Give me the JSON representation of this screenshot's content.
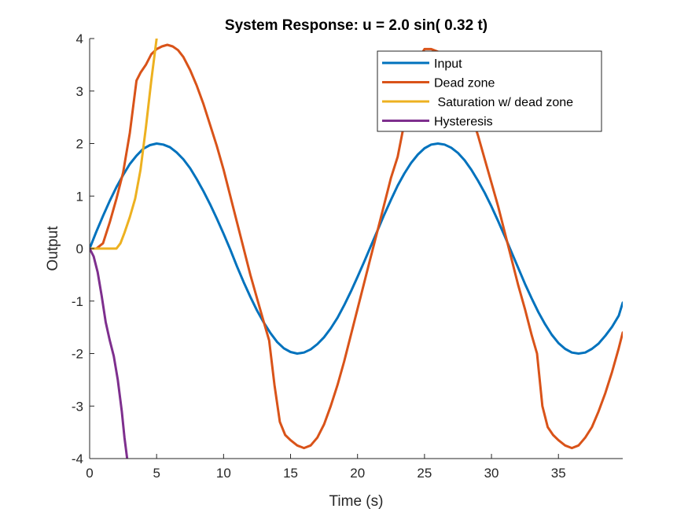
{
  "chart_data": {
    "type": "line",
    "title": "System Response: u = 2.0 sin( 0.32 t)",
    "xlabel": "Time (s)",
    "ylabel": "Output",
    "xlim": [
      0,
      39.8
    ],
    "ylim": [
      -4,
      4
    ],
    "xticks": [
      0,
      5,
      10,
      15,
      20,
      25,
      30,
      35
    ],
    "yticks": [
      -4,
      -3,
      -2,
      -1,
      0,
      1,
      2,
      3,
      4
    ],
    "grid": false,
    "legend_position": "top-right",
    "series": [
      {
        "name": "Input",
        "color": "#0072BD",
        "x": [
          0,
          0.5,
          1,
          1.5,
          2,
          2.5,
          3,
          3.5,
          4,
          4.5,
          5,
          5.5,
          6,
          6.5,
          7,
          7.5,
          8,
          8.5,
          9,
          9.5,
          10,
          10.5,
          11,
          11.5,
          12,
          12.5,
          13,
          13.5,
          14,
          14.5,
          15,
          15.5,
          16,
          16.5,
          17,
          17.5,
          18,
          18.5,
          19,
          19.5,
          20,
          20.5,
          21,
          21.5,
          22,
          22.5,
          23,
          23.5,
          24,
          24.5,
          25,
          25.5,
          26,
          26.5,
          27,
          27.5,
          28,
          28.5,
          29,
          29.5,
          30,
          30.5,
          31,
          31.5,
          32,
          32.5,
          33,
          33.5,
          34,
          34.5,
          35,
          35.5,
          36,
          36.5,
          37,
          37.5,
          38,
          38.5,
          39,
          39.5,
          39.8
        ],
        "values": [
          0,
          0.32,
          0.62,
          0.91,
          1.17,
          1.4,
          1.61,
          1.77,
          1.9,
          1.97,
          2.0,
          1.98,
          1.93,
          1.83,
          1.7,
          1.53,
          1.32,
          1.09,
          0.84,
          0.57,
          0.28,
          -0.02,
          -0.34,
          -0.64,
          -0.92,
          -1.18,
          -1.41,
          -1.61,
          -1.78,
          -1.9,
          -1.97,
          -2.0,
          -1.98,
          -1.92,
          -1.82,
          -1.69,
          -1.52,
          -1.32,
          -1.08,
          -0.82,
          -0.54,
          -0.25,
          0.05,
          0.35,
          0.65,
          0.93,
          1.2,
          1.43,
          1.63,
          1.79,
          1.91,
          1.98,
          2.0,
          1.98,
          1.92,
          1.82,
          1.68,
          1.5,
          1.29,
          1.06,
          0.8,
          0.52,
          0.23,
          -0.07,
          -0.37,
          -0.67,
          -0.95,
          -1.21,
          -1.44,
          -1.64,
          -1.8,
          -1.91,
          -1.98,
          -2.0,
          -1.98,
          -1.91,
          -1.81,
          -1.66,
          -1.49,
          -1.28,
          -1.03
        ]
      },
      {
        "name": "Dead zone",
        "color": "#D95319",
        "x": [
          0,
          0.5,
          1,
          1.5,
          2,
          2.5,
          3,
          3.5,
          3.8,
          4.2,
          4.6,
          5,
          5.4,
          5.8,
          6.2,
          6.6,
          7,
          7.5,
          8,
          8.5,
          9,
          9.5,
          10,
          10.5,
          11,
          11.5,
          12,
          12.5,
          13,
          13.4,
          13.8,
          14.2,
          14.6,
          15,
          15.5,
          16,
          16.5,
          17,
          17.5,
          18,
          18.5,
          19,
          19.5,
          20,
          20.5,
          21,
          21.5,
          22,
          22.5,
          23,
          23.5,
          24,
          24.5,
          25,
          25.5,
          26,
          26.5,
          27,
          27.5,
          28,
          28.5,
          29,
          29.5,
          30,
          30.5,
          31,
          31.5,
          32,
          32.5,
          33,
          33.4,
          33.8,
          34.2,
          34.6,
          35,
          35.5,
          36,
          36.5,
          37,
          37.5,
          38,
          38.5,
          39,
          39.5,
          39.8
        ],
        "values": [
          0,
          0,
          0.1,
          0.5,
          0.95,
          1.45,
          2.2,
          3.2,
          3.35,
          3.5,
          3.7,
          3.8,
          3.85,
          3.88,
          3.85,
          3.78,
          3.65,
          3.4,
          3.1,
          2.75,
          2.35,
          1.95,
          1.5,
          1.0,
          0.5,
          0.0,
          -0.5,
          -0.95,
          -1.4,
          -1.75,
          -2.6,
          -3.3,
          -3.55,
          -3.65,
          -3.75,
          -3.8,
          -3.75,
          -3.6,
          -3.35,
          -3.0,
          -2.6,
          -2.15,
          -1.65,
          -1.15,
          -0.65,
          -0.15,
          0.35,
          0.85,
          1.35,
          1.75,
          2.4,
          3.1,
          3.6,
          3.8,
          3.8,
          3.75,
          3.65,
          3.45,
          3.2,
          2.9,
          2.55,
          2.15,
          1.7,
          1.25,
          0.8,
          0.3,
          -0.2,
          -0.7,
          -1.15,
          -1.65,
          -2.0,
          -3.0,
          -3.4,
          -3.55,
          -3.65,
          -3.75,
          -3.8,
          -3.75,
          -3.6,
          -3.4,
          -3.1,
          -2.75,
          -2.35,
          -1.9,
          -1.6
        ]
      },
      {
        "name": " Saturation w/ dead zone",
        "color": "#EDB120",
        "x": [
          0,
          0.5,
          1,
          1.5,
          2,
          2.3,
          2.6,
          3,
          3.4,
          3.8,
          4.2,
          4.6,
          5.0
        ],
        "values": [
          0,
          0,
          0,
          0,
          0,
          0.1,
          0.3,
          0.6,
          0.95,
          1.5,
          2.3,
          3.2,
          4.0
        ]
      },
      {
        "name": "Hysteresis",
        "color": "#7E2F8E",
        "x": [
          0,
          0.3,
          0.6,
          0.9,
          1.2,
          1.5,
          1.8,
          2.1,
          2.4,
          2.6,
          2.8
        ],
        "values": [
          0,
          -0.15,
          -0.45,
          -0.9,
          -1.4,
          -1.75,
          -2.05,
          -2.5,
          -3.1,
          -3.6,
          -4.0
        ]
      }
    ]
  }
}
